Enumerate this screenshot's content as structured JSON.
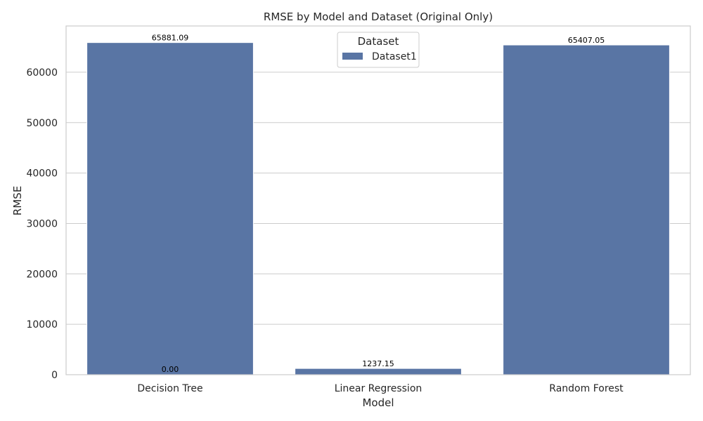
{
  "chart_data": {
    "type": "bar",
    "title": "RMSE by Model and Dataset (Original Only)",
    "xlabel": "Model",
    "ylabel": "RMSE",
    "categories": [
      "Decision Tree",
      "Linear Regression",
      "Random Forest"
    ],
    "series": [
      {
        "name": "Dataset1",
        "values": [
          65881.09,
          1237.15,
          65407.05
        ]
      }
    ],
    "data_labels": [
      "65881.09",
      "1237.15",
      "65407.05"
    ],
    "extra_label": "0.00",
    "ylim": [
      0,
      69175.14
    ],
    "yticks": [
      0,
      10000,
      20000,
      30000,
      40000,
      50000,
      60000
    ],
    "grid": true,
    "legend": {
      "title": "Dataset",
      "placement": "top-center"
    },
    "colors": {
      "bar": "#5975a4",
      "grid": "#cccccc",
      "frame": "#cccccc"
    }
  }
}
